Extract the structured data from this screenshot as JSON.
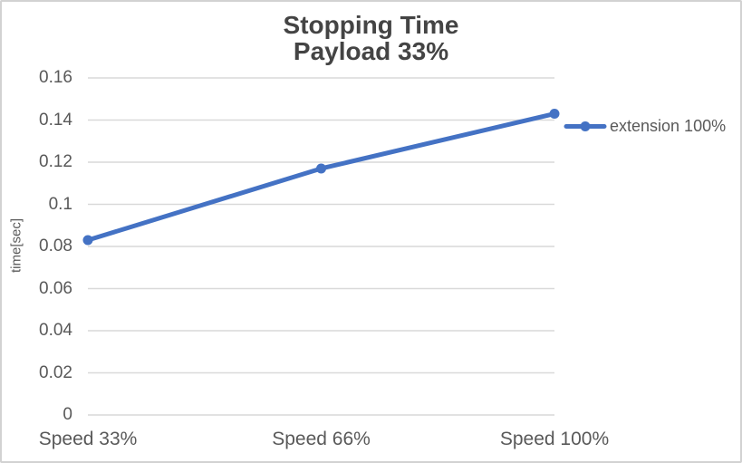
{
  "chart_data": {
    "type": "line",
    "title": "Stopping Time",
    "subtitle": "Payload 33%",
    "categories": [
      "Speed 33%",
      "Speed 66%",
      "Speed 100%"
    ],
    "series": [
      {
        "name": "extension 100%",
        "color": "#4472C4",
        "marker": "circle",
        "values": [
          0.083,
          0.117,
          0.143
        ]
      }
    ],
    "xlabel": "",
    "ylabel": "time[sec]",
    "ylim": [
      0,
      0.16
    ],
    "ytick_step": 0.02,
    "ytick_labels": [
      "0",
      "0.02",
      "0.04",
      "0.06",
      "0.08",
      "0.1",
      "0.12",
      "0.14",
      "0.16"
    ],
    "grid": true,
    "legend_position": "right",
    "colors": {
      "grid": "#D9D9D9",
      "axis_text": "#595959",
      "title_text": "#444444",
      "border": "#D2D2D2",
      "background": "#FFFFFF"
    }
  }
}
